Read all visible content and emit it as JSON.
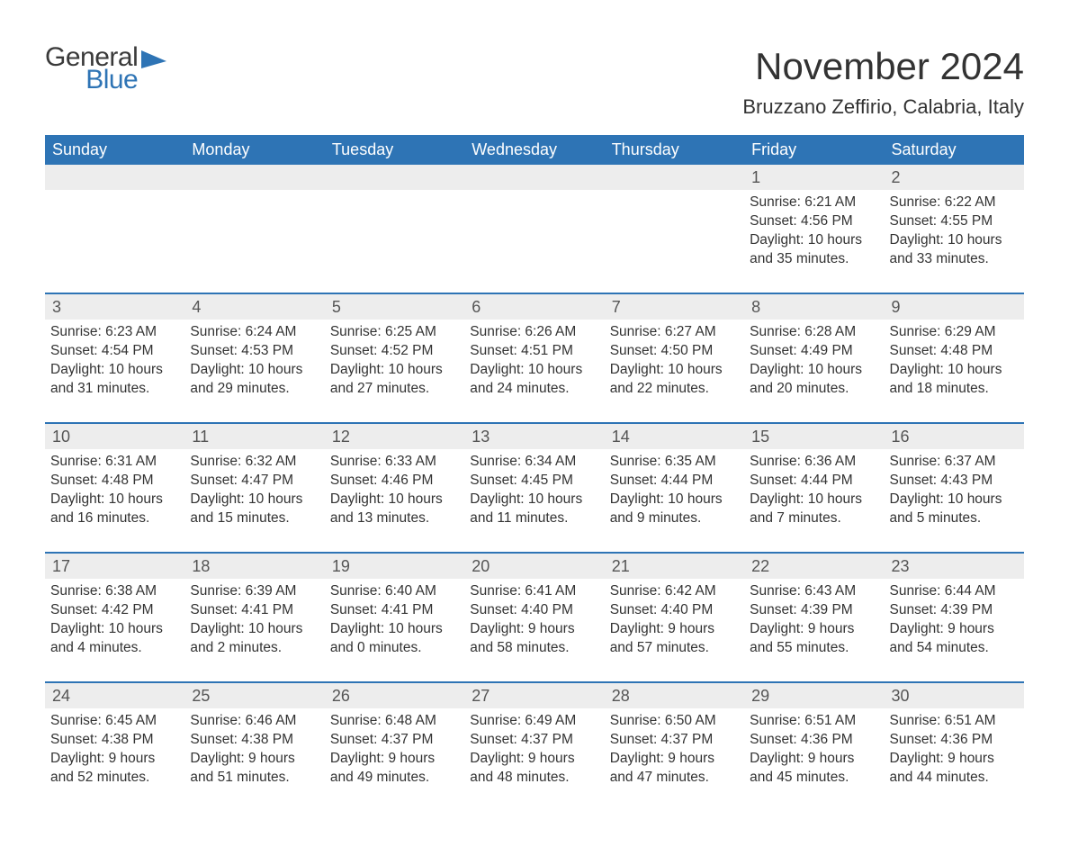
{
  "logo": {
    "general": "General",
    "blue": "Blue",
    "shape_color": "#2e74b5"
  },
  "title": "November 2024",
  "location": "Bruzzano Zeffirio, Calabria, Italy",
  "colors": {
    "header_bg": "#2e74b5",
    "header_text": "#ffffff",
    "daynum_bg": "#ededed",
    "border_top": "#2e74b5",
    "body_text": "#333333"
  },
  "day_headers": [
    "Sunday",
    "Monday",
    "Tuesday",
    "Wednesday",
    "Thursday",
    "Friday",
    "Saturday"
  ],
  "weeks": [
    [
      null,
      null,
      null,
      null,
      null,
      {
        "n": "1",
        "sr": "Sunrise: 6:21 AM",
        "ss": "Sunset: 4:56 PM",
        "dl1": "Daylight: 10 hours",
        "dl2": "and 35 minutes."
      },
      {
        "n": "2",
        "sr": "Sunrise: 6:22 AM",
        "ss": "Sunset: 4:55 PM",
        "dl1": "Daylight: 10 hours",
        "dl2": "and 33 minutes."
      }
    ],
    [
      {
        "n": "3",
        "sr": "Sunrise: 6:23 AM",
        "ss": "Sunset: 4:54 PM",
        "dl1": "Daylight: 10 hours",
        "dl2": "and 31 minutes."
      },
      {
        "n": "4",
        "sr": "Sunrise: 6:24 AM",
        "ss": "Sunset: 4:53 PM",
        "dl1": "Daylight: 10 hours",
        "dl2": "and 29 minutes."
      },
      {
        "n": "5",
        "sr": "Sunrise: 6:25 AM",
        "ss": "Sunset: 4:52 PM",
        "dl1": "Daylight: 10 hours",
        "dl2": "and 27 minutes."
      },
      {
        "n": "6",
        "sr": "Sunrise: 6:26 AM",
        "ss": "Sunset: 4:51 PM",
        "dl1": "Daylight: 10 hours",
        "dl2": "and 24 minutes."
      },
      {
        "n": "7",
        "sr": "Sunrise: 6:27 AM",
        "ss": "Sunset: 4:50 PM",
        "dl1": "Daylight: 10 hours",
        "dl2": "and 22 minutes."
      },
      {
        "n": "8",
        "sr": "Sunrise: 6:28 AM",
        "ss": "Sunset: 4:49 PM",
        "dl1": "Daylight: 10 hours",
        "dl2": "and 20 minutes."
      },
      {
        "n": "9",
        "sr": "Sunrise: 6:29 AM",
        "ss": "Sunset: 4:48 PM",
        "dl1": "Daylight: 10 hours",
        "dl2": "and 18 minutes."
      }
    ],
    [
      {
        "n": "10",
        "sr": "Sunrise: 6:31 AM",
        "ss": "Sunset: 4:48 PM",
        "dl1": "Daylight: 10 hours",
        "dl2": "and 16 minutes."
      },
      {
        "n": "11",
        "sr": "Sunrise: 6:32 AM",
        "ss": "Sunset: 4:47 PM",
        "dl1": "Daylight: 10 hours",
        "dl2": "and 15 minutes."
      },
      {
        "n": "12",
        "sr": "Sunrise: 6:33 AM",
        "ss": "Sunset: 4:46 PM",
        "dl1": "Daylight: 10 hours",
        "dl2": "and 13 minutes."
      },
      {
        "n": "13",
        "sr": "Sunrise: 6:34 AM",
        "ss": "Sunset: 4:45 PM",
        "dl1": "Daylight: 10 hours",
        "dl2": "and 11 minutes."
      },
      {
        "n": "14",
        "sr": "Sunrise: 6:35 AM",
        "ss": "Sunset: 4:44 PM",
        "dl1": "Daylight: 10 hours",
        "dl2": "and 9 minutes."
      },
      {
        "n": "15",
        "sr": "Sunrise: 6:36 AM",
        "ss": "Sunset: 4:44 PM",
        "dl1": "Daylight: 10 hours",
        "dl2": "and 7 minutes."
      },
      {
        "n": "16",
        "sr": "Sunrise: 6:37 AM",
        "ss": "Sunset: 4:43 PM",
        "dl1": "Daylight: 10 hours",
        "dl2": "and 5 minutes."
      }
    ],
    [
      {
        "n": "17",
        "sr": "Sunrise: 6:38 AM",
        "ss": "Sunset: 4:42 PM",
        "dl1": "Daylight: 10 hours",
        "dl2": "and 4 minutes."
      },
      {
        "n": "18",
        "sr": "Sunrise: 6:39 AM",
        "ss": "Sunset: 4:41 PM",
        "dl1": "Daylight: 10 hours",
        "dl2": "and 2 minutes."
      },
      {
        "n": "19",
        "sr": "Sunrise: 6:40 AM",
        "ss": "Sunset: 4:41 PM",
        "dl1": "Daylight: 10 hours",
        "dl2": "and 0 minutes."
      },
      {
        "n": "20",
        "sr": "Sunrise: 6:41 AM",
        "ss": "Sunset: 4:40 PM",
        "dl1": "Daylight: 9 hours",
        "dl2": "and 58 minutes."
      },
      {
        "n": "21",
        "sr": "Sunrise: 6:42 AM",
        "ss": "Sunset: 4:40 PM",
        "dl1": "Daylight: 9 hours",
        "dl2": "and 57 minutes."
      },
      {
        "n": "22",
        "sr": "Sunrise: 6:43 AM",
        "ss": "Sunset: 4:39 PM",
        "dl1": "Daylight: 9 hours",
        "dl2": "and 55 minutes."
      },
      {
        "n": "23",
        "sr": "Sunrise: 6:44 AM",
        "ss": "Sunset: 4:39 PM",
        "dl1": "Daylight: 9 hours",
        "dl2": "and 54 minutes."
      }
    ],
    [
      {
        "n": "24",
        "sr": "Sunrise: 6:45 AM",
        "ss": "Sunset: 4:38 PM",
        "dl1": "Daylight: 9 hours",
        "dl2": "and 52 minutes."
      },
      {
        "n": "25",
        "sr": "Sunrise: 6:46 AM",
        "ss": "Sunset: 4:38 PM",
        "dl1": "Daylight: 9 hours",
        "dl2": "and 51 minutes."
      },
      {
        "n": "26",
        "sr": "Sunrise: 6:48 AM",
        "ss": "Sunset: 4:37 PM",
        "dl1": "Daylight: 9 hours",
        "dl2": "and 49 minutes."
      },
      {
        "n": "27",
        "sr": "Sunrise: 6:49 AM",
        "ss": "Sunset: 4:37 PM",
        "dl1": "Daylight: 9 hours",
        "dl2": "and 48 minutes."
      },
      {
        "n": "28",
        "sr": "Sunrise: 6:50 AM",
        "ss": "Sunset: 4:37 PM",
        "dl1": "Daylight: 9 hours",
        "dl2": "and 47 minutes."
      },
      {
        "n": "29",
        "sr": "Sunrise: 6:51 AM",
        "ss": "Sunset: 4:36 PM",
        "dl1": "Daylight: 9 hours",
        "dl2": "and 45 minutes."
      },
      {
        "n": "30",
        "sr": "Sunrise: 6:51 AM",
        "ss": "Sunset: 4:36 PM",
        "dl1": "Daylight: 9 hours",
        "dl2": "and 44 minutes."
      }
    ]
  ]
}
